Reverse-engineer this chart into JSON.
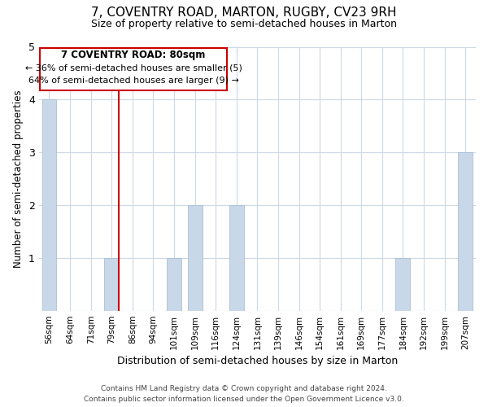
{
  "title": "7, COVENTRY ROAD, MARTON, RUGBY, CV23 9RH",
  "subtitle": "Size of property relative to semi-detached houses in Marton",
  "xlabel": "Distribution of semi-detached houses by size in Marton",
  "ylabel": "Number of semi-detached properties",
  "categories": [
    "56sqm",
    "64sqm",
    "71sqm",
    "79sqm",
    "86sqm",
    "94sqm",
    "101sqm",
    "109sqm",
    "116sqm",
    "124sqm",
    "131sqm",
    "139sqm",
    "146sqm",
    "154sqm",
    "161sqm",
    "169sqm",
    "177sqm",
    "184sqm",
    "192sqm",
    "199sqm",
    "207sqm"
  ],
  "values": [
    4,
    0,
    0,
    1,
    0,
    0,
    1,
    2,
    0,
    2,
    0,
    0,
    0,
    0,
    0,
    0,
    0,
    1,
    0,
    0,
    3
  ],
  "bar_color": "#c8d8e8",
  "bar_edge_color": "#a0b8d0",
  "vline_x_index": 3,
  "vline_color": "#cc0000",
  "annotation_title": "7 COVENTRY ROAD: 80sqm",
  "annotation_line1": "← 36% of semi-detached houses are smaller (5)",
  "annotation_line2": "64% of semi-detached houses are larger (9) →",
  "annotation_box_color": "#ffffff",
  "annotation_box_edge": "#cc0000",
  "ylim": [
    0,
    5
  ],
  "yticks": [
    0,
    1,
    2,
    3,
    4,
    5
  ],
  "footer_line1": "Contains HM Land Registry data © Crown copyright and database right 2024.",
  "footer_line2": "Contains public sector information licensed under the Open Government Licence v3.0.",
  "background_color": "#ffffff",
  "grid_color": "#ccd8e4"
}
